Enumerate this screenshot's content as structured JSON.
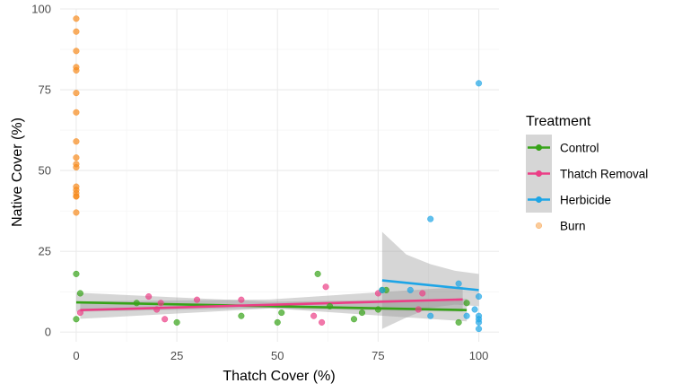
{
  "chart_data": {
    "type": "scatter",
    "xlabel": "Thatch Cover (%)",
    "ylabel": "Native Cover (%)",
    "xlim": [
      -4,
      105
    ],
    "ylim": [
      -3,
      100
    ],
    "x_ticks": [
      "0",
      "25",
      "50",
      "75",
      "100"
    ],
    "y_ticks": [
      "0",
      "25",
      "50",
      "75",
      "100"
    ],
    "grid": true,
    "legend_title": "Treatment",
    "legend_position": "right",
    "series": [
      {
        "name": "Control",
        "color": "#36A318",
        "has_fit": true,
        "points": [
          [
            0,
            4
          ],
          [
            0,
            18
          ],
          [
            1,
            12
          ],
          [
            15,
            9
          ],
          [
            25,
            3
          ],
          [
            41,
            5
          ],
          [
            50,
            3
          ],
          [
            51,
            6
          ],
          [
            60,
            18
          ],
          [
            63,
            8
          ],
          [
            69,
            4
          ],
          [
            71,
            6
          ],
          [
            75,
            7
          ],
          [
            76,
            13
          ],
          [
            77,
            13
          ],
          [
            95,
            3
          ],
          [
            97,
            9
          ]
        ],
        "fit": {
          "x": [
            0,
            97
          ],
          "y": [
            9.2,
            6.8
          ]
        },
        "band": {
          "x": [
            0,
            48,
            97
          ],
          "lower": [
            6.3,
            7.4,
            3.3
          ],
          "upper": [
            12.2,
            9.4,
            10.3
          ]
        }
      },
      {
        "name": "Thatch Removal",
        "color": "#EB3E86",
        "has_fit": true,
        "points": [
          [
            1,
            6
          ],
          [
            18,
            11
          ],
          [
            20,
            7
          ],
          [
            21,
            9
          ],
          [
            22,
            4
          ],
          [
            30,
            10
          ],
          [
            41,
            10
          ],
          [
            59,
            5
          ],
          [
            61,
            3
          ],
          [
            62,
            14
          ],
          [
            75,
            12
          ],
          [
            85,
            7
          ],
          [
            86,
            12
          ]
        ],
        "fit": {
          "x": [
            1,
            96
          ],
          "y": [
            6.8,
            10.1
          ]
        },
        "band": {
          "x": [
            1,
            48,
            96
          ],
          "lower": [
            4.1,
            7.3,
            6.3
          ],
          "upper": [
            9.5,
            10.1,
            14.0
          ]
        }
      },
      {
        "name": "Herbicide",
        "color": "#1EA5E6",
        "has_fit": true,
        "points": [
          [
            76,
            13
          ],
          [
            83,
            13
          ],
          [
            88,
            35
          ],
          [
            88,
            5
          ],
          [
            95,
            15
          ],
          [
            97,
            5
          ],
          [
            99,
            7
          ],
          [
            100,
            77
          ],
          [
            100,
            11
          ],
          [
            100,
            5
          ],
          [
            100,
            4
          ],
          [
            100,
            3
          ],
          [
            100,
            1
          ]
        ],
        "fit": {
          "x": [
            76,
            100
          ],
          "y": [
            16,
            13
          ]
        },
        "band": {
          "x": [
            76,
            82,
            88,
            94,
            100
          ],
          "lower": [
            1,
            4.5,
            7.5,
            8.5,
            8
          ],
          "upper": [
            31,
            24,
            21,
            19,
            18
          ]
        }
      },
      {
        "name": "Burn",
        "color": "#F68B1F",
        "has_fit": false,
        "points": [
          [
            0,
            97
          ],
          [
            0,
            93
          ],
          [
            0,
            87
          ],
          [
            0,
            82
          ],
          [
            0,
            81
          ],
          [
            0,
            74
          ],
          [
            0,
            68
          ],
          [
            0,
            59
          ],
          [
            0,
            54
          ],
          [
            0,
            52
          ],
          [
            0,
            51
          ],
          [
            0,
            45
          ],
          [
            0,
            44
          ],
          [
            0,
            43
          ],
          [
            0,
            42
          ],
          [
            0,
            42
          ],
          [
            0,
            37
          ]
        ]
      }
    ]
  }
}
